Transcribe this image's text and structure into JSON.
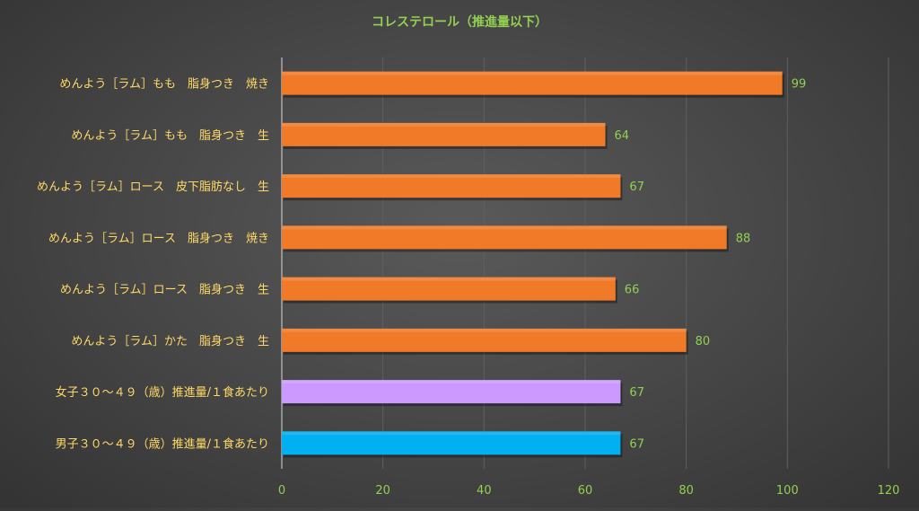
{
  "chart_data": {
    "type": "bar",
    "orientation": "horizontal",
    "title": "コレステロール（推進量以下）",
    "categories": [
      "めんよう［ラム］もも　脂身つき　焼き",
      "めんよう［ラム］もも　脂身つき　生",
      "めんよう［ラム］ロース　皮下脂肪なし　生",
      "めんよう［ラム］ロース　脂身つき　焼き",
      "めんよう［ラム］ロース　脂身つき　生",
      "めんよう［ラム］かた　脂身つき　生",
      "女子３０～４９（歳）推進量/１食あたり",
      "男子３０～４９（歳）推進量/１食あたり"
    ],
    "values": [
      99,
      64,
      67,
      88,
      66,
      80,
      67,
      67
    ],
    "value_labels": [
      "99",
      "64",
      "67",
      "88",
      "66",
      "80",
      "67",
      "67"
    ],
    "bar_colors": [
      "#f07a28",
      "#f07a28",
      "#f07a28",
      "#f07a28",
      "#f07a28",
      "#f07a28",
      "#cc99ff",
      "#00b0f0"
    ],
    "xlim": [
      0,
      120
    ],
    "xticks": [
      "0",
      "20",
      "40",
      "60",
      "80",
      "100",
      "120"
    ],
    "grid": true,
    "title_color": "#92d050",
    "category_label_color": "#ffd966",
    "value_label_color": "#92d050",
    "tick_label_color": "#92d050"
  }
}
